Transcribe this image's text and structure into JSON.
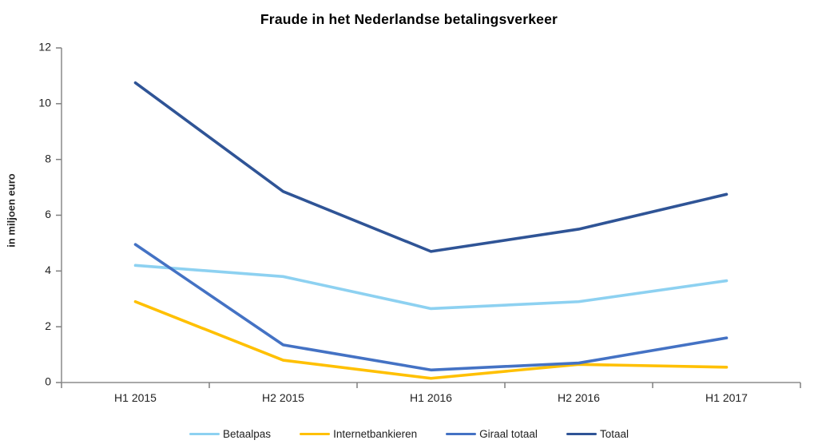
{
  "chart_data": {
    "type": "line",
    "title": "Fraude in het Nederlandse betalingsverkeer",
    "xlabel": "",
    "ylabel": "in miljoen euro",
    "categories": [
      "H1 2015",
      "H2 2015",
      "H1 2016",
      "H2 2016",
      "H1 2017"
    ],
    "series": [
      {
        "name": "Betaalpas",
        "color": "#8DD1F1",
        "values": [
          4.2,
          3.8,
          2.65,
          2.9,
          3.65
        ]
      },
      {
        "name": "Internetbankieren",
        "color": "#FFC000",
        "values": [
          2.9,
          0.8,
          0.15,
          0.65,
          0.55
        ]
      },
      {
        "name": "Giraal totaal",
        "color": "#4472C4",
        "values": [
          4.95,
          1.35,
          0.45,
          0.7,
          1.6
        ]
      },
      {
        "name": "Totaal",
        "color": "#2F5496",
        "values": [
          10.75,
          6.85,
          4.7,
          5.5,
          6.75
        ]
      }
    ],
    "ylim": [
      0,
      12
    ],
    "yticks": [
      0,
      2,
      4,
      6,
      8,
      10,
      12
    ],
    "grid": false,
    "legend_position": "bottom",
    "axis_color": "#9D9D9D",
    "tick_color": "#7F7F7F",
    "text_color": "#1f1f1f"
  }
}
